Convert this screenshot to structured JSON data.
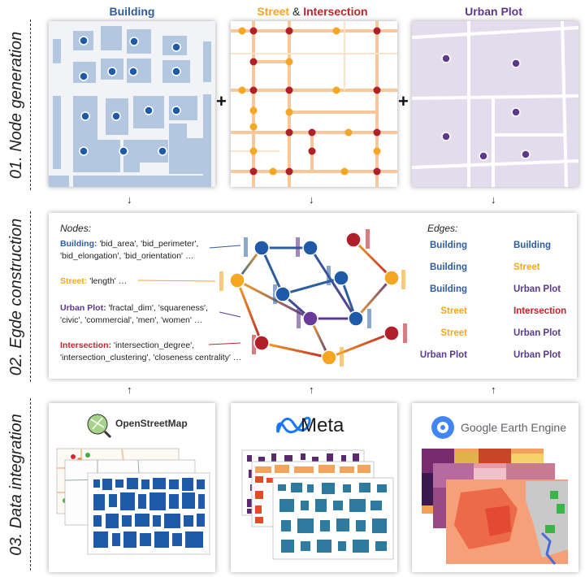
{
  "columns": {
    "building": {
      "title": "Building",
      "color": "#2e5d9e"
    },
    "street_intersection": {
      "street": "Street",
      "amp": "&",
      "intersection": "Intersection",
      "street_color": "#f5a623",
      "intersection_color": "#c0252b"
    },
    "urban_plot": {
      "title": "Urban Plot",
      "color": "#5b3a8c"
    }
  },
  "rows": {
    "node_generation": "01. Node generation",
    "edge_construction": "02. Egde construction",
    "data_integration": "03. Data integration"
  },
  "plus_sign": "+",
  "arrow": "↓",
  "arrow_up": "↑",
  "nodes": {
    "title": "Nodes:",
    "building": {
      "label": "Building:",
      "line1": "'bid_area', 'bid_perimeter',",
      "line2": "'bid_elongation', 'bid_orientation' …"
    },
    "street": {
      "label": "Street:",
      "line1": "'length' …"
    },
    "urban_plot": {
      "label": "Urban Plot:",
      "line1": "'fractal_dim', 'squareness',",
      "line2": "'civic', 'commercial', 'men', 'women' …"
    },
    "intersection": {
      "label": "Intersection:",
      "line1": "'intersection_degree',",
      "line2": "'intersection_clustering', 'closeness centrality' …"
    }
  },
  "edges": {
    "title": "Edges:",
    "rows": [
      {
        "from": "Building",
        "to": "Building",
        "from_color": "#2e5d9e",
        "to_color": "#2e5d9e"
      },
      {
        "from": "Building",
        "to": "Street",
        "from_color": "#2e5d9e",
        "to_color": "#f5a623"
      },
      {
        "from": "Building",
        "to": "Urban Plot",
        "from_color": "#2e5d9e",
        "to_color": "#5b3a8c"
      },
      {
        "from": "Street",
        "to": "Intersection",
        "from_color": "#f5a623",
        "to_color": "#c0252b"
      },
      {
        "from": "Street",
        "to": "Urban Plot",
        "from_color": "#f5a623",
        "to_color": "#5b3a8c"
      },
      {
        "from": "Urban Plot",
        "to": "Urban Plot",
        "from_color": "#5b3a8c",
        "to_color": "#5b3a8c"
      }
    ]
  },
  "sources": {
    "osm": "OpenStreetMap",
    "meta": "Meta",
    "gee": "Google Earth Engine"
  },
  "colors": {
    "building": "#2e5d9e",
    "street": "#f5a623",
    "intersection": "#c0252b",
    "urban_plot": "#5b3a8c"
  }
}
